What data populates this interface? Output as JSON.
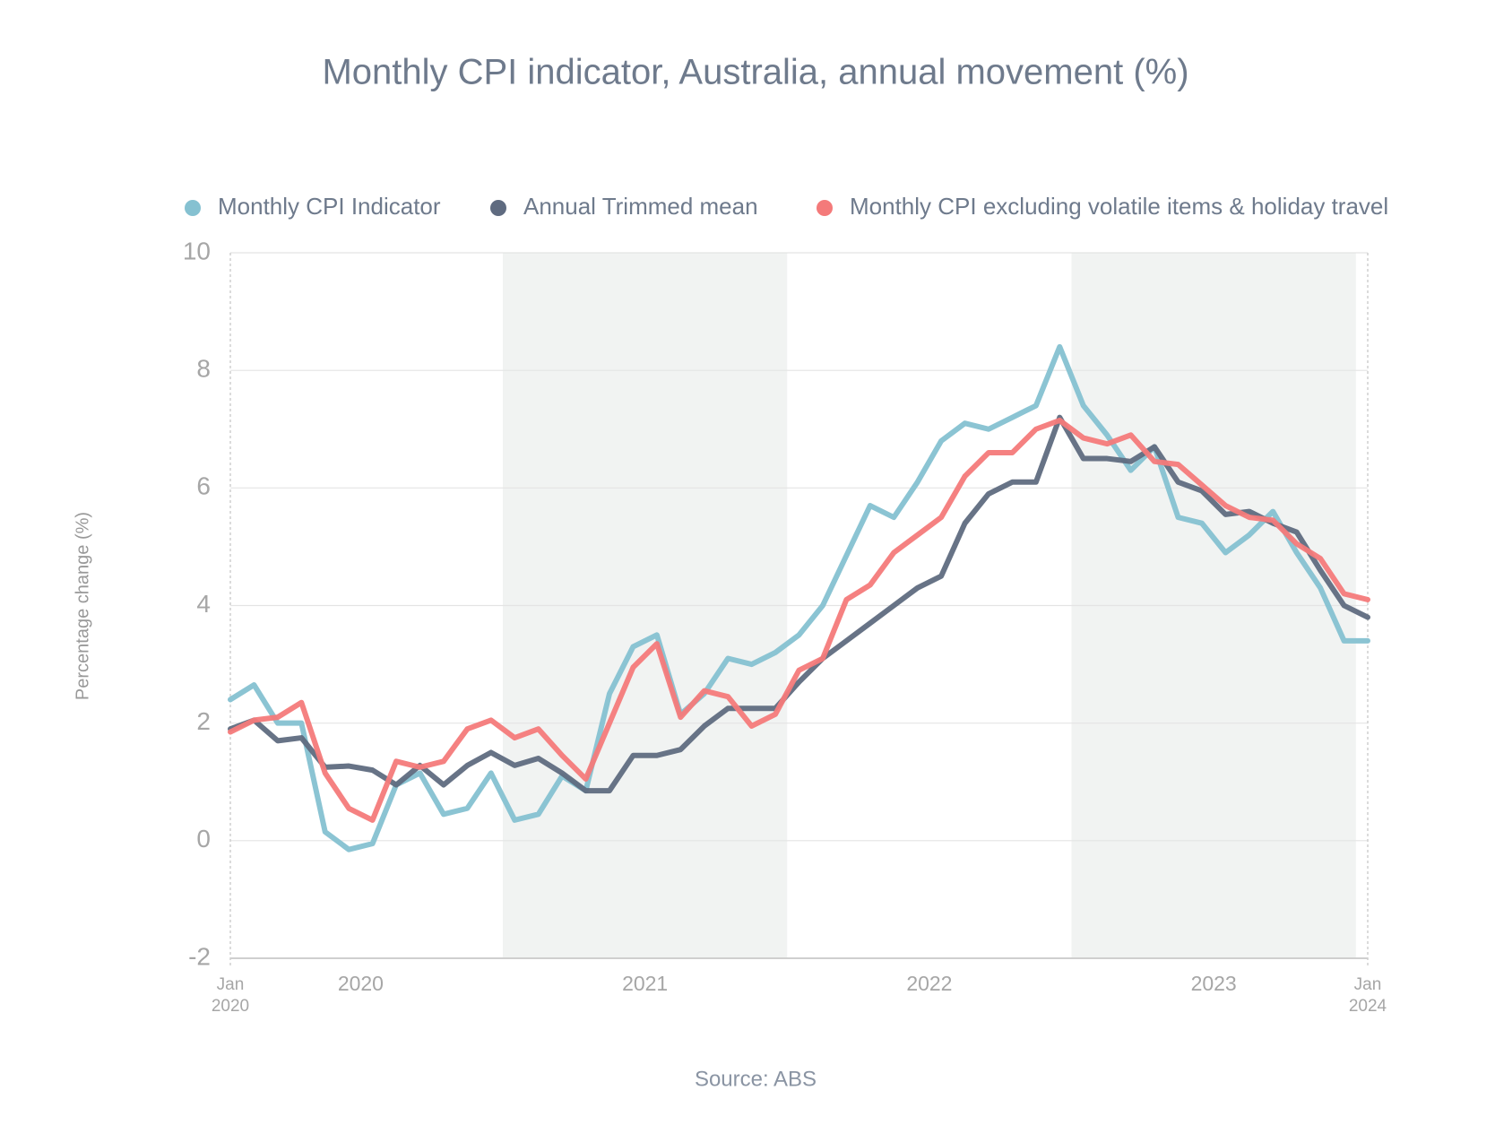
{
  "chart_data": {
    "type": "line",
    "title": "Monthly CPI indicator, Australia, annual movement (%)",
    "y_label": "Percentage change (%)",
    "source": "Source: ABS",
    "x": [
      0,
      1,
      2,
      3,
      4,
      5,
      6,
      7,
      8,
      9,
      10,
      11,
      12,
      13,
      14,
      15,
      16,
      17,
      18,
      19,
      20,
      21,
      22,
      23,
      24,
      25,
      26,
      27,
      28,
      29,
      30,
      31,
      32,
      33,
      34,
      35,
      36,
      37,
      38,
      39,
      40,
      41,
      42,
      43,
      44,
      45,
      46,
      47,
      48
    ],
    "xlim": [
      0,
      48
    ],
    "xticks": [
      {
        "value": 0,
        "label": "Jan 2020"
      },
      {
        "value": 48,
        "label": "Jan 2024"
      }
    ],
    "year_labels": [
      {
        "value": 5.5,
        "label": "2020"
      },
      {
        "value": 17.5,
        "label": "2021"
      },
      {
        "value": 29.5,
        "label": "2022"
      },
      {
        "value": 41.5,
        "label": "2023"
      }
    ],
    "shaded_ranges": [
      [
        11.5,
        23.5
      ],
      [
        35.5,
        47.5
      ]
    ],
    "ylim": [
      -2,
      10
    ],
    "yticks": [
      -2,
      0,
      2,
      4,
      6,
      8,
      10
    ],
    "grid": true,
    "legend": "top",
    "series": [
      {
        "name": "Monthly CPI Indicator",
        "color": "#85c1d1",
        "values": [
          2.4,
          2.65,
          2.0,
          2.0,
          0.15,
          -0.15,
          -0.05,
          0.95,
          1.15,
          0.45,
          0.55,
          1.15,
          0.35,
          0.45,
          1.1,
          0.85,
          2.5,
          3.3,
          3.5,
          2.15,
          2.5,
          3.1,
          3.0,
          3.2,
          3.5,
          4.0,
          4.85,
          5.7,
          5.5,
          6.1,
          6.8,
          7.1,
          7.0,
          7.2,
          7.4,
          8.4,
          7.4,
          6.9,
          6.3,
          6.7,
          5.5,
          5.4,
          4.9,
          5.2,
          5.6,
          4.9,
          4.3,
          3.4,
          3.4
        ]
      },
      {
        "name": "Annual Trimmed mean",
        "color": "#5f6b80",
        "values": [
          1.9,
          2.05,
          1.7,
          1.75,
          1.25,
          1.27,
          1.2,
          0.95,
          1.28,
          0.95,
          1.28,
          1.5,
          1.28,
          1.4,
          1.15,
          0.85,
          0.85,
          1.45,
          1.45,
          1.55,
          1.95,
          2.25,
          2.25,
          2.25,
          2.7,
          3.1,
          3.4,
          3.7,
          4.0,
          4.3,
          4.5,
          5.4,
          5.9,
          6.1,
          6.1,
          7.2,
          6.5,
          6.5,
          6.45,
          6.7,
          6.1,
          5.95,
          5.55,
          5.6,
          5.4,
          5.25,
          4.6,
          4.0,
          3.8
        ]
      },
      {
        "name": "Monthly CPI excluding volatile items & holiday travel",
        "color": "#f47a7a",
        "values": [
          1.85,
          2.05,
          2.1,
          2.35,
          1.15,
          0.55,
          0.35,
          1.35,
          1.25,
          1.35,
          1.9,
          2.05,
          1.75,
          1.9,
          1.45,
          1.05,
          2.0,
          2.95,
          3.35,
          2.1,
          2.55,
          2.45,
          1.95,
          2.15,
          2.9,
          3.1,
          4.1,
          4.35,
          4.9,
          5.2,
          5.5,
          6.2,
          6.6,
          6.6,
          7.0,
          7.15,
          6.85,
          6.75,
          6.9,
          6.45,
          6.4,
          6.05,
          5.7,
          5.5,
          5.45,
          5.05,
          4.8,
          4.2,
          4.1
        ]
      }
    ]
  }
}
